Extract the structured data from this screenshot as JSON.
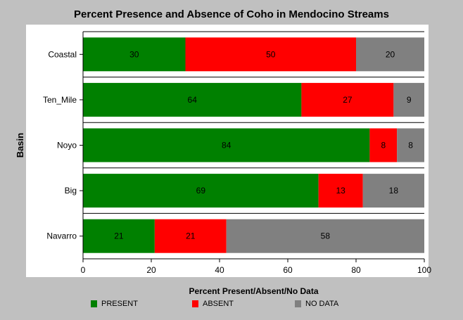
{
  "chart_data": {
    "type": "bar",
    "orientation": "horizontal",
    "stacked": true,
    "title": "Percent Presence and Absence of Coho in Mendocino Streams",
    "xlabel": "Percent Present/Absent/No Data",
    "ylabel": "Basin",
    "xlim": [
      0,
      100
    ],
    "xticks": [
      0,
      20,
      40,
      60,
      80,
      100
    ],
    "categories": [
      "Coastal",
      "Ten_Mile",
      "Noyo",
      "Big",
      "Navarro"
    ],
    "series": [
      {
        "name": "PRESENT",
        "color": "#008000",
        "values": [
          30,
          64,
          84,
          69,
          21
        ]
      },
      {
        "name": "ABSENT",
        "color": "#ff0000",
        "values": [
          50,
          27,
          8,
          13,
          21
        ]
      },
      {
        "name": "NO DATA",
        "color": "#808080",
        "values": [
          20,
          9,
          8,
          18,
          58
        ]
      }
    ],
    "legend_position": "bottom",
    "grid": false
  }
}
